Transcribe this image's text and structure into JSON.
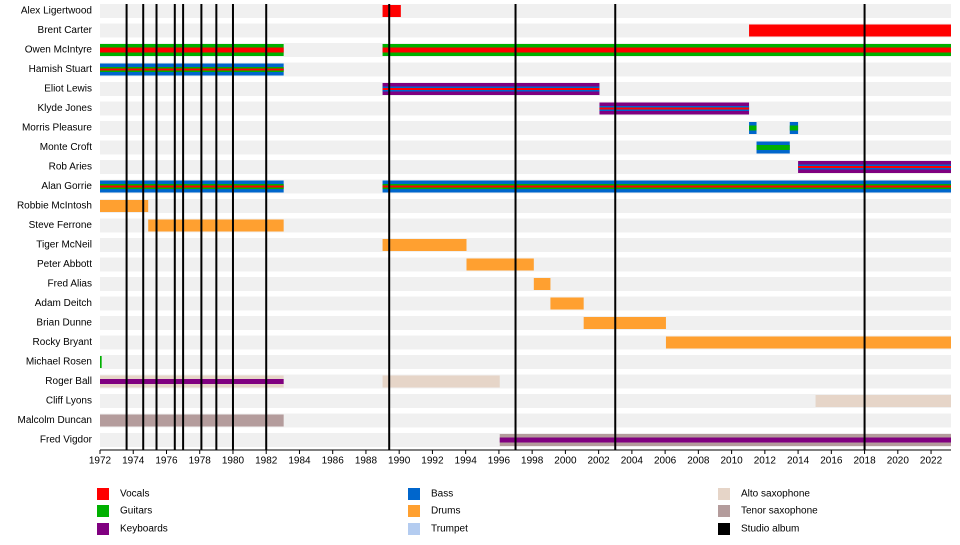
{
  "chart_data": {
    "type": "timeline",
    "xlim": [
      1972,
      2023.2
    ],
    "xticks": [
      1972,
      1974,
      1976,
      1978,
      1980,
      1982,
      1984,
      1986,
      1988,
      1990,
      1992,
      1994,
      1996,
      1998,
      2000,
      2002,
      2004,
      2006,
      2008,
      2010,
      2012,
      2014,
      2016,
      2018,
      2020,
      2022
    ],
    "legend": [
      {
        "name": "Vocals",
        "color": "#ff0000"
      },
      {
        "name": "Guitars",
        "color": "#00b000"
      },
      {
        "name": "Keyboards",
        "color": "#800080"
      },
      {
        "name": "Bass",
        "color": "#0066cc"
      },
      {
        "name": "Drums",
        "color": "#ffa030"
      },
      {
        "name": "Trumpet",
        "color": "#b4ccf0"
      },
      {
        "name": "Alto saxophone",
        "color": "#e6d5c8"
      },
      {
        "name": "Tenor saxophone",
        "color": "#b49c9c"
      },
      {
        "name": "Studio album",
        "color": "#000000"
      }
    ],
    "albums": [
      1973.6,
      1974.6,
      1975.4,
      1976.5,
      1977.0,
      1978.1,
      1979.0,
      1980.0,
      1982.0,
      1989.4,
      1997.0,
      2003.0,
      2018.0
    ],
    "members": [
      {
        "name": "Alex Ligertwood",
        "bars": [
          {
            "start": 1989,
            "end": 1990.1,
            "colors": [
              "#ff0000"
            ]
          }
        ]
      },
      {
        "name": "Brent Carter",
        "bars": [
          {
            "start": 2011.05,
            "end": 2023.2,
            "colors": [
              "#ff0000"
            ]
          }
        ]
      },
      {
        "name": "Owen McIntyre",
        "bars": [
          {
            "start": 1972,
            "end": 1983.05,
            "colors": [
              "#00b000",
              "#ff0000"
            ]
          },
          {
            "start": 1989,
            "end": 2023.2,
            "colors": [
              "#00b000",
              "#ff0000"
            ]
          }
        ]
      },
      {
        "name": "Hamish Stuart",
        "bars": [
          {
            "start": 1972,
            "end": 1983.05,
            "colors": [
              "#0066cc",
              "#00b000",
              "#ff0000"
            ]
          }
        ]
      },
      {
        "name": "Eliot Lewis",
        "bars": [
          {
            "start": 1989,
            "end": 2002.05,
            "colors": [
              "#800080",
              "#0066cc",
              "#ff0000"
            ]
          }
        ]
      },
      {
        "name": "Klyde Jones",
        "bars": [
          {
            "start": 2002.05,
            "end": 2011.05,
            "colors": [
              "#800080",
              "#0066cc",
              "#ff0000"
            ]
          }
        ]
      },
      {
        "name": "Morris Pleasure",
        "bars": [
          {
            "start": 2011.05,
            "end": 2011.5,
            "colors": [
              "#0066cc",
              "#00b000"
            ]
          },
          {
            "start": 2013.5,
            "end": 2014,
            "colors": [
              "#0066cc",
              "#00b000"
            ]
          }
        ]
      },
      {
        "name": "Monte Croft",
        "bars": [
          {
            "start": 2011.5,
            "end": 2013.5,
            "colors": [
              "#0066cc",
              "#00b000"
            ]
          }
        ]
      },
      {
        "name": "Rob Aries",
        "bars": [
          {
            "start": 2014,
            "end": 2023.2,
            "colors": [
              "#800080",
              "#0066cc",
              "#ff0000"
            ]
          }
        ]
      },
      {
        "name": "Alan Gorrie",
        "bars": [
          {
            "start": 1972,
            "end": 1983.05,
            "colors": [
              "#0066cc",
              "#00b000",
              "#ff0000"
            ]
          },
          {
            "start": 1989,
            "end": 2023.2,
            "colors": [
              "#0066cc",
              "#00b000",
              "#ff0000"
            ]
          }
        ]
      },
      {
        "name": "Robbie McIntosh",
        "bars": [
          {
            "start": 1972,
            "end": 1974.9,
            "colors": [
              "#ffa030"
            ]
          }
        ]
      },
      {
        "name": "Steve Ferrone",
        "bars": [
          {
            "start": 1974.9,
            "end": 1983.05,
            "colors": [
              "#ffa030"
            ]
          }
        ]
      },
      {
        "name": "Tiger McNeil",
        "bars": [
          {
            "start": 1989,
            "end": 1994.05,
            "colors": [
              "#ffa030"
            ]
          }
        ]
      },
      {
        "name": "Peter Abbott",
        "bars": [
          {
            "start": 1994.05,
            "end": 1998.1,
            "colors": [
              "#ffa030"
            ]
          }
        ]
      },
      {
        "name": "Fred Alias",
        "bars": [
          {
            "start": 1998.1,
            "end": 1999.1,
            "colors": [
              "#ffa030"
            ]
          }
        ]
      },
      {
        "name": "Adam Deitch",
        "bars": [
          {
            "start": 1999.1,
            "end": 2001.1,
            "colors": [
              "#ffa030"
            ]
          }
        ]
      },
      {
        "name": "Brian Dunne",
        "bars": [
          {
            "start": 2001.1,
            "end": 2006.05,
            "colors": [
              "#ffa030"
            ]
          }
        ]
      },
      {
        "name": "Rocky Bryant",
        "bars": [
          {
            "start": 2006.05,
            "end": 2023.2,
            "colors": [
              "#ffa030"
            ]
          }
        ]
      },
      {
        "name": "Michael Rosen",
        "bars": [
          {
            "start": 1972,
            "end": 1972.1,
            "colors": [
              "#00b000"
            ]
          }
        ]
      },
      {
        "name": "Roger Ball",
        "bars": [
          {
            "start": 1972,
            "end": 1983.05,
            "colors": [
              "#e6d5c8",
              "#800080"
            ]
          },
          {
            "start": 1989,
            "end": 1996.05,
            "colors": [
              "#e6d5c8"
            ]
          }
        ]
      },
      {
        "name": "Cliff Lyons",
        "bars": [
          {
            "start": 2015.05,
            "end": 2023.2,
            "colors": [
              "#e6d5c8"
            ]
          }
        ]
      },
      {
        "name": "Malcolm Duncan",
        "bars": [
          {
            "start": 1972,
            "end": 1983.05,
            "colors": [
              "#b49c9c"
            ]
          }
        ]
      },
      {
        "name": "Fred Vigdor",
        "bars": [
          {
            "start": 1996.05,
            "end": 2023.2,
            "colors": [
              "#b49c9c",
              "#800080"
            ]
          }
        ]
      }
    ]
  }
}
